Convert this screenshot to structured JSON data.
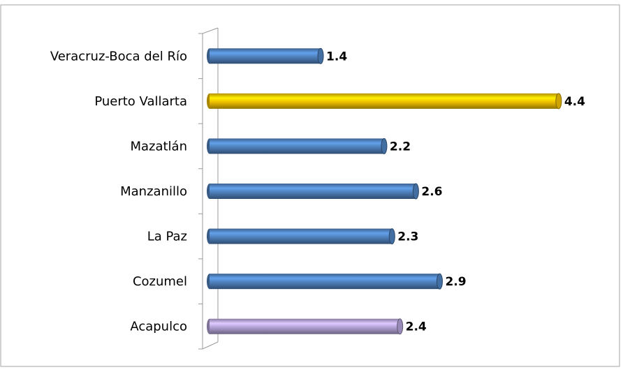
{
  "chart_data": {
    "type": "bar",
    "orientation": "horizontal",
    "categories": [
      "Veracruz-Boca del Río",
      "Puerto Vallarta",
      "Mazatlán",
      "Manzanillo",
      "La Paz",
      "Cozumel",
      "Acapulco"
    ],
    "values": [
      1.4,
      4.4,
      2.2,
      2.6,
      2.3,
      2.9,
      2.4
    ],
    "colors": [
      "#4f81bd",
      "#f0c000",
      "#4f81bd",
      "#4f81bd",
      "#4f81bd",
      "#4f81bd",
      "#b3a2d6"
    ]
  }
}
